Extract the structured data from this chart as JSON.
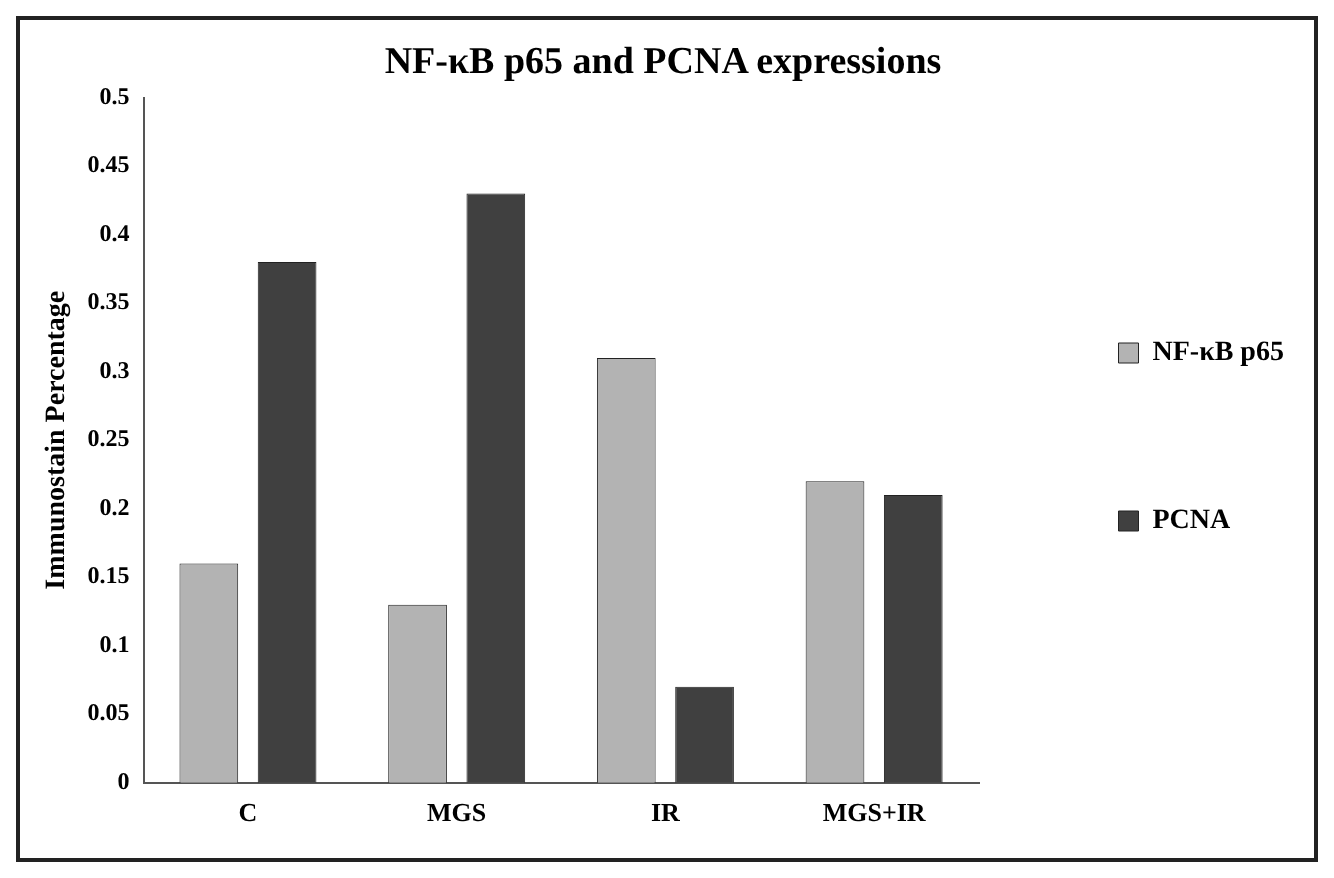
{
  "chart_data": {
    "type": "bar",
    "title": "NF-κB p65 and PCNA expressions",
    "ylabel": "Immunostain Percentage",
    "categories": [
      "C",
      "MGS",
      "IR",
      "MGS+IR"
    ],
    "series": [
      {
        "name": "NF-κB p65",
        "color": "#b3b3b3",
        "values": [
          0.16,
          0.13,
          0.31,
          0.22
        ]
      },
      {
        "name": "PCNA",
        "color": "#404040",
        "values": [
          0.38,
          0.43,
          0.07,
          0.21
        ]
      }
    ],
    "ylim": [
      0,
      0.5
    ],
    "yticks": [
      0,
      0.05,
      0.1,
      0.15,
      0.2,
      0.25,
      0.3,
      0.35,
      0.4,
      0.45,
      0.5
    ],
    "grid": false,
    "legend": "right"
  }
}
